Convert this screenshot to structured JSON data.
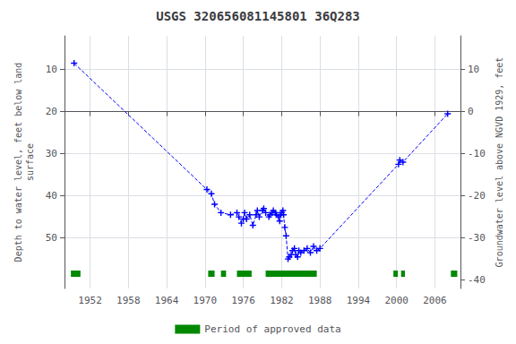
{
  "chart_data": {
    "type": "line",
    "title": "USGS 320656081145801 36Q283",
    "ylabel": "Depth to water level, feet below land\nsurface",
    "y2label": "Groundwater level above NGVD 1929, feet",
    "xlim": [
      1948,
      2010
    ],
    "xticks": [
      1952,
      1958,
      1964,
      1970,
      1976,
      1982,
      1988,
      1994,
      2000,
      2006
    ],
    "ylim": [
      62,
      2
    ],
    "yticks": [
      10,
      20,
      30,
      40,
      50
    ],
    "y2lim": [
      -42,
      18
    ],
    "y2ticks": [
      -40,
      -30,
      -20,
      -10,
      0,
      10
    ],
    "grid": true,
    "legend": "bottom",
    "series": [
      {
        "type": "line",
        "color": "#0000ff",
        "marker": "plus",
        "line_style": "dashed",
        "x": [
          1949.5,
          1970.3,
          1971.0,
          1971.5,
          1972.5,
          1974.0,
          1975.0,
          1975.3,
          1975.7,
          1976.0,
          1976.2,
          1976.5,
          1977.0,
          1977.5,
          1978.0,
          1978.2,
          1978.5,
          1979.0,
          1979.2,
          1979.5,
          1980.0,
          1980.2,
          1980.5,
          1980.7,
          1981.0,
          1981.2,
          1981.5,
          1981.7,
          1981.8,
          1982.0,
          1982.2,
          1982.3,
          1982.5,
          1982.7,
          1983.0,
          1983.2,
          1983.5,
          1983.7,
          1984.0,
          1984.2,
          1984.5,
          1984.7,
          1985.0,
          1985.5,
          1986.0,
          1986.5,
          1987.0,
          1987.5,
          1988.0,
          2000.3,
          2000.5,
          2001.0,
          2008.0
        ],
        "values": [
          8.5,
          38.5,
          39.5,
          42.0,
          44.0,
          44.5,
          44.0,
          45.0,
          46.5,
          45.5,
          44.0,
          45.5,
          44.5,
          47.0,
          44.5,
          43.5,
          45.0,
          43.5,
          43.0,
          44.0,
          45.0,
          44.5,
          44.0,
          43.5,
          44.0,
          44.5,
          45.0,
          46.0,
          44.5,
          44.0,
          43.5,
          44.5,
          47.5,
          49.5,
          55.0,
          54.5,
          54.0,
          53.0,
          52.5,
          54.0,
          54.5,
          53.0,
          53.5,
          53.0,
          52.5,
          53.5,
          52.0,
          53.0,
          52.5,
          32.5,
          31.5,
          32.0,
          20.5
        ]
      },
      {
        "type": "periods",
        "name": "Period of approved data",
        "color": "#008800",
        "y": 58.5,
        "height": 1.5,
        "periods": [
          [
            1949.0,
            1950.5
          ],
          [
            1970.5,
            1971.5
          ],
          [
            1972.5,
            1973.3
          ],
          [
            1975.0,
            1977.3
          ],
          [
            1979.5,
            1987.5
          ],
          [
            1999.5,
            2000.2
          ],
          [
            2000.7,
            2001.3
          ],
          [
            2008.5,
            2009.5
          ]
        ]
      }
    ]
  }
}
